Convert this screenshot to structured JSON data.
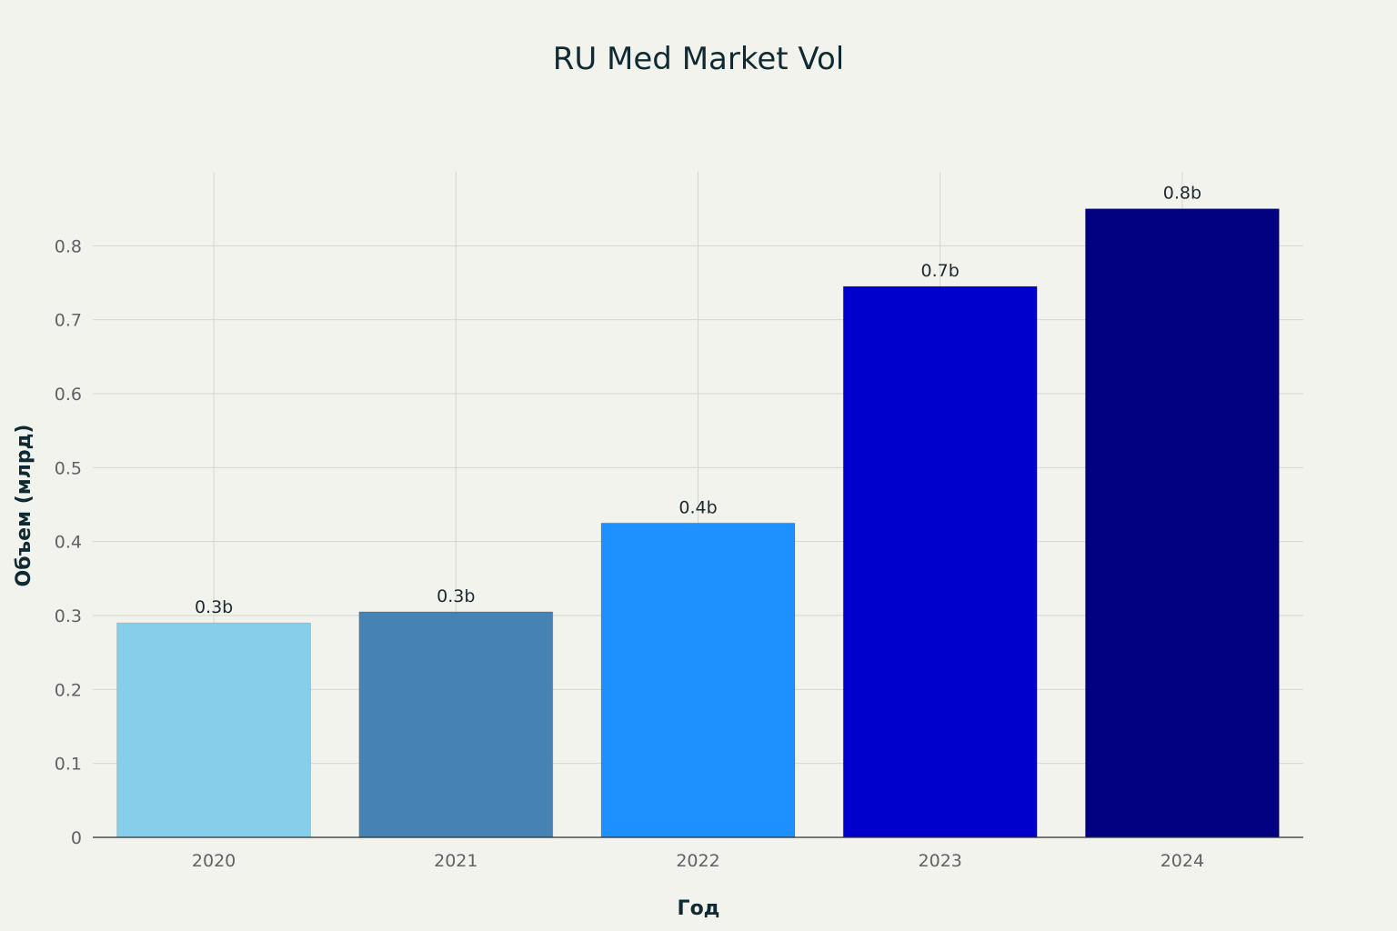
{
  "chart_data": {
    "type": "bar",
    "title": "RU Med Market Vol",
    "xlabel": "Год",
    "ylabel": "Объем (млрд)",
    "categories": [
      "2020",
      "2021",
      "2022",
      "2023",
      "2024"
    ],
    "values": [
      0.29,
      0.305,
      0.425,
      0.745,
      0.85
    ],
    "data_labels": [
      "0.3b",
      "0.3b",
      "0.4b",
      "0.7b",
      "0.8b"
    ],
    "colors": [
      "#87ceeb",
      "#4682b4",
      "#1e90ff",
      "#0000cd",
      "#000080"
    ],
    "ylim": [
      0,
      0.9
    ],
    "yticks": [
      0,
      0.1,
      0.2,
      0.3,
      0.4,
      0.5,
      0.6,
      0.7,
      0.8
    ],
    "ytick_labels": [
      "0",
      "0.1",
      "0.2",
      "0.3",
      "0.4",
      "0.5",
      "0.6",
      "0.7",
      "0.8"
    ],
    "grid": true,
    "legend": "none"
  }
}
